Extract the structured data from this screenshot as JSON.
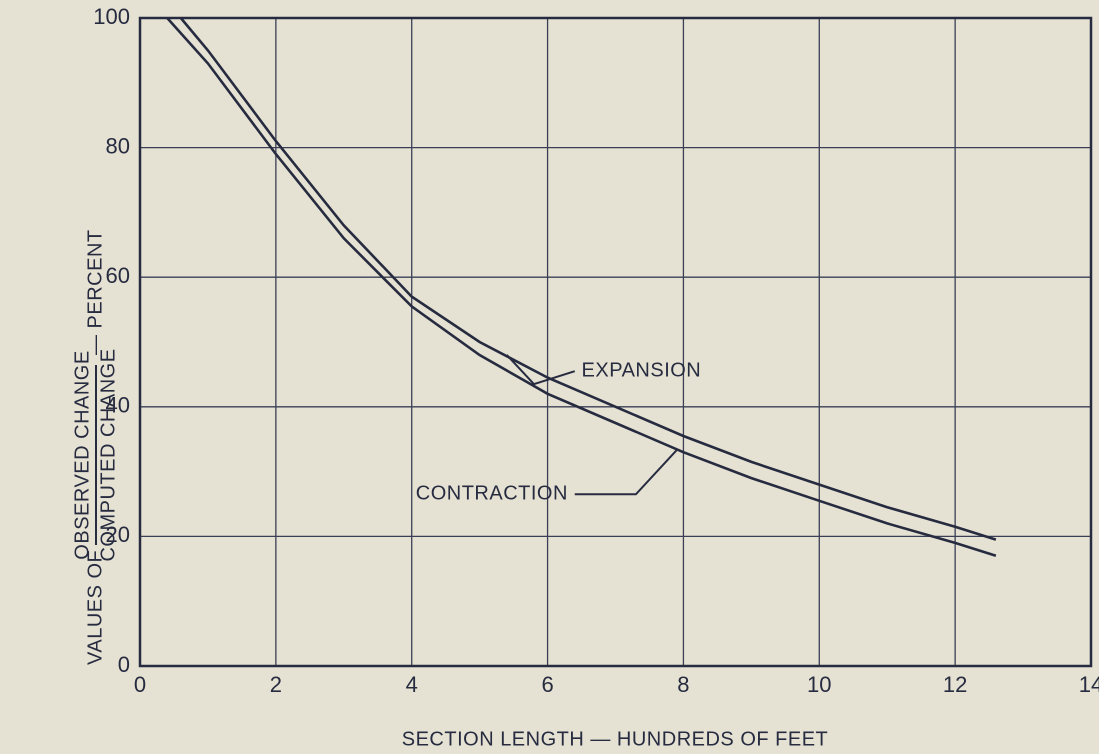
{
  "chart_data": {
    "type": "line",
    "x_label": "SECTION LENGTH — HUNDREDS OF FEET",
    "y_label": {
      "prefix": "VALUES OF",
      "numerator": "OBSERVED CHANGE",
      "denominator": "COMPUTED CHANGE",
      "suffix": "— PERCENT"
    },
    "xlim": [
      0,
      14
    ],
    "ylim": [
      0,
      100
    ],
    "xticks": [
      0,
      2,
      4,
      6,
      8,
      10,
      12,
      14
    ],
    "yticks": [
      0,
      20,
      40,
      60,
      80,
      100
    ],
    "grid": true,
    "series": [
      {
        "name": "EXPANSION",
        "color": "#262b40",
        "x": [
          0.6,
          1,
          2,
          3,
          4,
          5,
          6,
          7,
          8,
          9,
          10,
          11,
          12,
          12.6
        ],
        "values": [
          100,
          95,
          81,
          68,
          57,
          50,
          44.5,
          40,
          35.5,
          31.5,
          28,
          24.5,
          21.5,
          19.5
        ]
      },
      {
        "name": "CONTRACTION",
        "color": "#262b40",
        "x": [
          0.4,
          1,
          2,
          3,
          4,
          5,
          6,
          7,
          8,
          9,
          10,
          11,
          12,
          12.6
        ],
        "values": [
          100,
          93,
          79,
          66,
          55.5,
          48,
          42,
          37.5,
          33,
          29,
          25.5,
          22,
          19,
          17
        ]
      }
    ]
  }
}
